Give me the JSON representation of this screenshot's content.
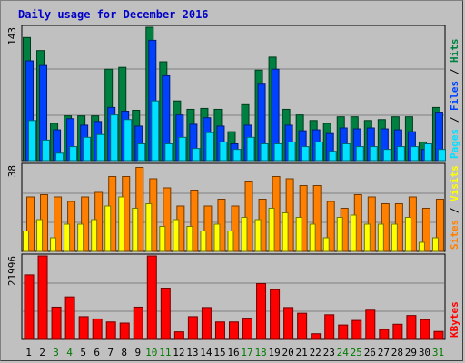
{
  "title": "Daily usage for December 2016",
  "colors": {
    "hits": "#008040",
    "files": "#0040ff",
    "pages": "#00e0ff",
    "visits": "#ff8000",
    "sites": "#ffff00",
    "kbytes": "#ff0000",
    "weekend_label": "#007a00",
    "weekday_label": "#000000"
  },
  "chart_data": [
    {
      "type": "bar",
      "panel": "top",
      "y_max_label": "143",
      "ylim": [
        0,
        143
      ],
      "legend": {
        "pages": "Pages",
        "files": "Files",
        "hits": "Hits",
        "sep": " / "
      },
      "categories": [
        "1",
        "2",
        "3",
        "4",
        "5",
        "6",
        "7",
        "8",
        "9",
        "10",
        "11",
        "12",
        "13",
        "14",
        "15",
        "16",
        "17",
        "18",
        "19",
        "20",
        "21",
        "22",
        "23",
        "24",
        "25",
        "26",
        "27",
        "28",
        "29",
        "30",
        "31"
      ],
      "series": [
        {
          "name": "Hits",
          "values": [
            132,
            118,
            40,
            48,
            48,
            48,
            98,
            100,
            54,
            147,
            106,
            64,
            55,
            56,
            55,
            31,
            60,
            97,
            111,
            55,
            49,
            43,
            40,
            47,
            47,
            43,
            44,
            47,
            47,
            20,
            57
          ]
        },
        {
          "name": "Files",
          "values": [
            107,
            102,
            33,
            45,
            38,
            42,
            57,
            53,
            37,
            129,
            91,
            49,
            39,
            46,
            37,
            18,
            38,
            82,
            98,
            38,
            32,
            33,
            29,
            35,
            34,
            35,
            34,
            33,
            31,
            12,
            52
          ]
        },
        {
          "name": "Pages",
          "values": [
            43,
            22,
            8,
            15,
            25,
            28,
            49,
            44,
            18,
            64,
            18,
            25,
            13,
            30,
            20,
            12,
            25,
            18,
            18,
            20,
            15,
            20,
            10,
            18,
            15,
            15,
            12,
            15,
            15,
            18,
            12
          ]
        }
      ]
    },
    {
      "type": "bar",
      "panel": "middle",
      "y_max_label": "38",
      "ylim": [
        0,
        38
      ],
      "legend": {
        "sites": "Sites",
        "visits": "Visits",
        "sep": " / "
      },
      "categories": [
        "1",
        "2",
        "3",
        "4",
        "5",
        "6",
        "7",
        "8",
        "9",
        "10",
        "11",
        "12",
        "13",
        "14",
        "15",
        "16",
        "17",
        "18",
        "19",
        "20",
        "21",
        "22",
        "23",
        "24",
        "25",
        "26",
        "27",
        "28",
        "29",
        "30",
        "31"
      ],
      "series": [
        {
          "name": "Visits",
          "values": [
            24,
            25,
            24,
            22,
            24,
            26,
            33,
            33,
            37,
            32,
            28,
            20,
            27,
            20,
            23,
            20,
            31,
            23,
            33,
            32,
            29,
            29,
            22,
            19,
            25,
            24,
            21,
            21,
            24,
            19,
            23
          ]
        },
        {
          "name": "Sites",
          "values": [
            9,
            14,
            6,
            12,
            12,
            14,
            20,
            24,
            19,
            21,
            11,
            14,
            11,
            9,
            12,
            9,
            15,
            14,
            19,
            17,
            15,
            12,
            6,
            15,
            16,
            12,
            12,
            12,
            15,
            4,
            6
          ]
        }
      ]
    },
    {
      "type": "bar",
      "panel": "bottom",
      "y_max_label": "21996",
      "ylim": [
        0,
        21996
      ],
      "legend": {
        "kbytes": "KBytes"
      },
      "categories": [
        "1",
        "2",
        "3",
        "4",
        "5",
        "6",
        "7",
        "8",
        "9",
        "10",
        "11",
        "12",
        "13",
        "14",
        "15",
        "16",
        "17",
        "18",
        "19",
        "20",
        "21",
        "22",
        "23",
        "24",
        "25",
        "26",
        "27",
        "28",
        "29",
        "30",
        "31"
      ],
      "series": [
        {
          "name": "KBytes",
          "values": [
            17000,
            22000,
            8500,
            11200,
            6000,
            5400,
            4600,
            4300,
            8500,
            22000,
            13500,
            2000,
            6000,
            8400,
            4600,
            4600,
            5600,
            14700,
            13100,
            8400,
            6900,
            1500,
            6500,
            3800,
            5000,
            7700,
            2600,
            4000,
            6300,
            5200,
            2100
          ]
        }
      ]
    }
  ]
}
